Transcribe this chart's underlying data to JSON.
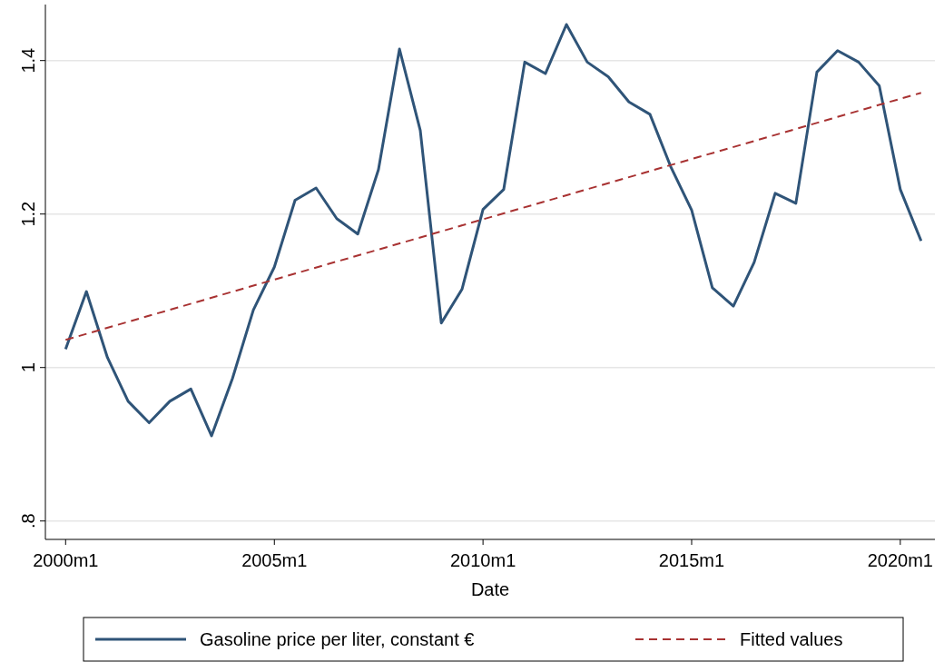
{
  "chart_data": {
    "type": "line",
    "xlabel": "Date",
    "xlim": [
      "1999-07-08",
      "2020-10-30"
    ],
    "ylim": [
      0.776,
      1.473
    ],
    "xticks": [
      {
        "value": "2000-01",
        "label": "2000m1"
      },
      {
        "value": "2005-01",
        "label": "2005m1"
      },
      {
        "value": "2010-01",
        "label": "2010m1"
      },
      {
        "value": "2015-01",
        "label": "2015m1"
      },
      {
        "value": "2020-01",
        "label": "2020m1"
      }
    ],
    "yticks": [
      {
        "value": 0.8,
        "label": ".8"
      },
      1,
      1.2,
      1.4
    ],
    "grid": "y",
    "legend": "bottom",
    "series": [
      {
        "name": "Gasoline price per liter, constant €",
        "color": "#2f5478",
        "line_style": "solid",
        "x": [
          "2000-01",
          "2000-07",
          "2001-01",
          "2001-07",
          "2002-01",
          "2002-07",
          "2003-01",
          "2003-07",
          "2004-01",
          "2004-07",
          "2005-01",
          "2005-07",
          "2006-01",
          "2006-07",
          "2007-01",
          "2007-07",
          "2008-01",
          "2008-07",
          "2009-01",
          "2009-07",
          "2010-01",
          "2010-07",
          "2011-01",
          "2011-07",
          "2012-01",
          "2012-07",
          "2013-01",
          "2013-07",
          "2014-01",
          "2014-07",
          "2015-01",
          "2015-07",
          "2016-01",
          "2016-07",
          "2017-01",
          "2017-07",
          "2018-01",
          "2018-07",
          "2019-01",
          "2019-07",
          "2020-01",
          "2020-07"
        ],
        "values": [
          1.024,
          1.099,
          1.013,
          0.956,
          0.928,
          0.956,
          0.972,
          0.911,
          0.986,
          1.075,
          1.131,
          1.218,
          1.234,
          1.194,
          1.174,
          1.258,
          1.415,
          1.309,
          1.058,
          1.102,
          1.206,
          1.232,
          1.398,
          1.383,
          1.447,
          1.398,
          1.379,
          1.346,
          1.33,
          1.262,
          1.205,
          1.104,
          1.08,
          1.137,
          1.227,
          1.214,
          1.385,
          1.413,
          1.398,
          1.367,
          1.232,
          1.165
        ]
      },
      {
        "name": "Fitted values",
        "color": "#a83232",
        "line_style": "dashed",
        "x": [
          "2000-01",
          "2020-07"
        ],
        "values": [
          1.036,
          1.358
        ]
      }
    ]
  }
}
